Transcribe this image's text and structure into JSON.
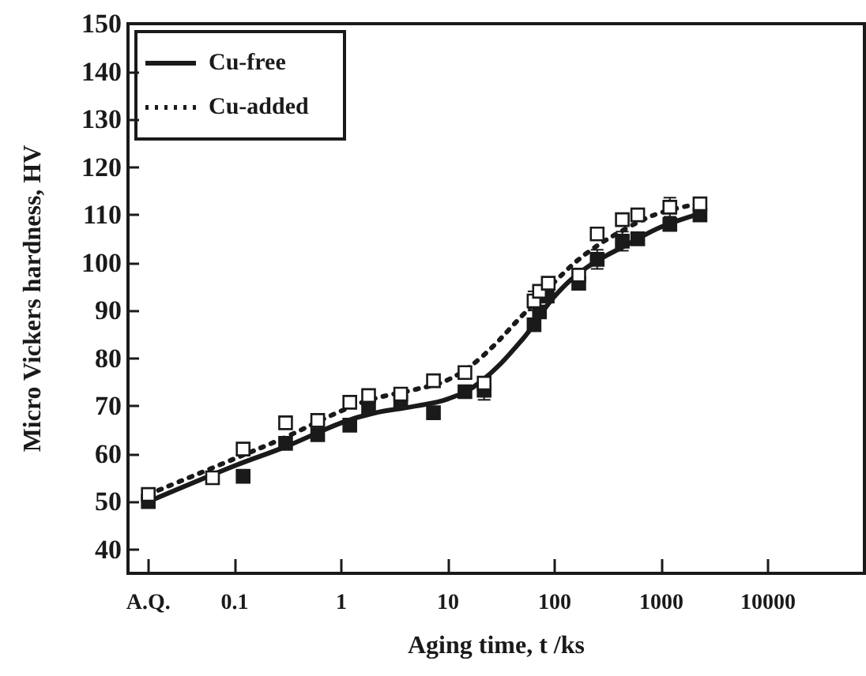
{
  "chart_data": {
    "type": "scatter",
    "xlabel": "Aging time, t /ks",
    "ylabel": "Micro Vickers hardness, HV",
    "log": "x",
    "xlim": [
      0.01,
      80000
    ],
    "ylim": [
      35,
      150
    ],
    "xticks": [
      {
        "value": 0.0155,
        "label": "A.Q."
      },
      0.1,
      1,
      10,
      100,
      1000,
      10000
    ],
    "yticks": [
      40,
      50,
      60,
      70,
      80,
      90,
      100,
      110,
      120,
      130,
      140,
      150
    ],
    "grid": false,
    "legend": "top left",
    "series": [
      {
        "color": "#1a1a1a",
        "marker": "square",
        "x": [
          0.0155,
          0.12,
          0.3,
          0.6,
          1.2,
          1.8,
          3.6,
          7.3,
          14.4,
          21.8,
          64,
          72,
          85,
          168,
          250,
          430,
          600,
          1200,
          2300
        ],
        "values": [
          50,
          55.3,
          62.2,
          64,
          66,
          69.7,
          70.8,
          68.6,
          73,
          73.3,
          87,
          89.7,
          93,
          95.7,
          100.7,
          104.5,
          105,
          108,
          110
        ],
        "errors": [
          null,
          null,
          null,
          null,
          null,
          null,
          null,
          null,
          null,
          2,
          null,
          null,
          null,
          null,
          2,
          2,
          null,
          null,
          null
        ]
      },
      {
        "color": "#ffffff",
        "marker": "square",
        "x": [
          0.0155,
          0.062,
          0.12,
          0.3,
          0.6,
          1.2,
          1.8,
          3.6,
          7.3,
          14.4,
          21.8,
          64,
          72,
          87,
          168,
          250,
          430,
          600,
          1200,
          2300
        ],
        "values": [
          51.5,
          55,
          61,
          66.5,
          67,
          70.8,
          72.2,
          72.5,
          75.3,
          77,
          74.8,
          92,
          94,
          95.7,
          97.4,
          106,
          109,
          110,
          111.6,
          112.3
        ],
        "errors": [
          null,
          null,
          null,
          null,
          null,
          null,
          null,
          null,
          null,
          1,
          null,
          2,
          null,
          null,
          null,
          null,
          null,
          null,
          2,
          null
        ]
      },
      {
        "type": "line",
        "name": "Cu-free",
        "color": "#1a1a1a",
        "line_style": "solid",
        "marker": "none",
        "x": [
          0.0155,
          0.1,
          0.3,
          1,
          2,
          5,
          10,
          20,
          50,
          100,
          200,
          500,
          1000,
          2500
        ],
        "values": [
          50,
          57.5,
          61.5,
          66.5,
          68.5,
          70,
          71.5,
          75,
          84,
          93,
          99,
          104,
          107.5,
          110.5
        ]
      },
      {
        "type": "line",
        "name": "Cu-added",
        "color": "#1a1a1a",
        "line_style": "dotted",
        "marker": "none",
        "x": [
          0.0155,
          0.1,
          0.3,
          1,
          2,
          5,
          10,
          20,
          50,
          100,
          200,
          500,
          1000,
          2500
        ],
        "values": [
          51.5,
          59,
          63.5,
          69,
          71.5,
          73.5,
          75.5,
          80,
          89,
          96,
          102,
          107.5,
          110.5,
          112.5
        ]
      }
    ]
  }
}
